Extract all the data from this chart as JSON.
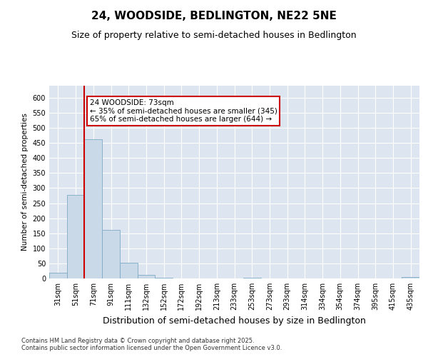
{
  "title": "24, WOODSIDE, BEDLINGTON, NE22 5NE",
  "subtitle": "Size of property relative to semi-detached houses in Bedlington",
  "xlabel": "Distribution of semi-detached houses by size in Bedlington",
  "ylabel": "Number of semi-detached properties",
  "categories": [
    "31sqm",
    "51sqm",
    "71sqm",
    "91sqm",
    "111sqm",
    "132sqm",
    "152sqm",
    "172sqm",
    "192sqm",
    "213sqm",
    "233sqm",
    "253sqm",
    "273sqm",
    "293sqm",
    "314sqm",
    "334sqm",
    "354sqm",
    "374sqm",
    "395sqm",
    "415sqm",
    "435sqm"
  ],
  "values": [
    20,
    278,
    462,
    162,
    51,
    12,
    2,
    0,
    0,
    0,
    0,
    3,
    0,
    0,
    0,
    0,
    0,
    0,
    0,
    0,
    5
  ],
  "bar_color": "#c9d9e8",
  "bar_edgecolor": "#7daac4",
  "background_color": "#dde6f0",
  "grid_color": "#ffffff",
  "annotation_line1": "24 WOODSIDE: 73sqm",
  "annotation_line2": "← 35% of semi-detached houses are smaller (345)",
  "annotation_line3": "65% of semi-detached houses are larger (644) →",
  "annotation_box_color": "#ffffff",
  "annotation_box_edgecolor": "#cc0000",
  "vline_color": "#cc0000",
  "vline_xindex": 2,
  "ylim": [
    0,
    640
  ],
  "yticks": [
    0,
    50,
    100,
    150,
    200,
    250,
    300,
    350,
    400,
    450,
    500,
    550,
    600
  ],
  "footer": "Contains HM Land Registry data © Crown copyright and database right 2025.\nContains public sector information licensed under the Open Government Licence v3.0.",
  "title_fontsize": 11,
  "subtitle_fontsize": 9,
  "xlabel_fontsize": 9,
  "ylabel_fontsize": 7.5,
  "tick_fontsize": 7,
  "annotation_fontsize": 7.5,
  "footer_fontsize": 6
}
